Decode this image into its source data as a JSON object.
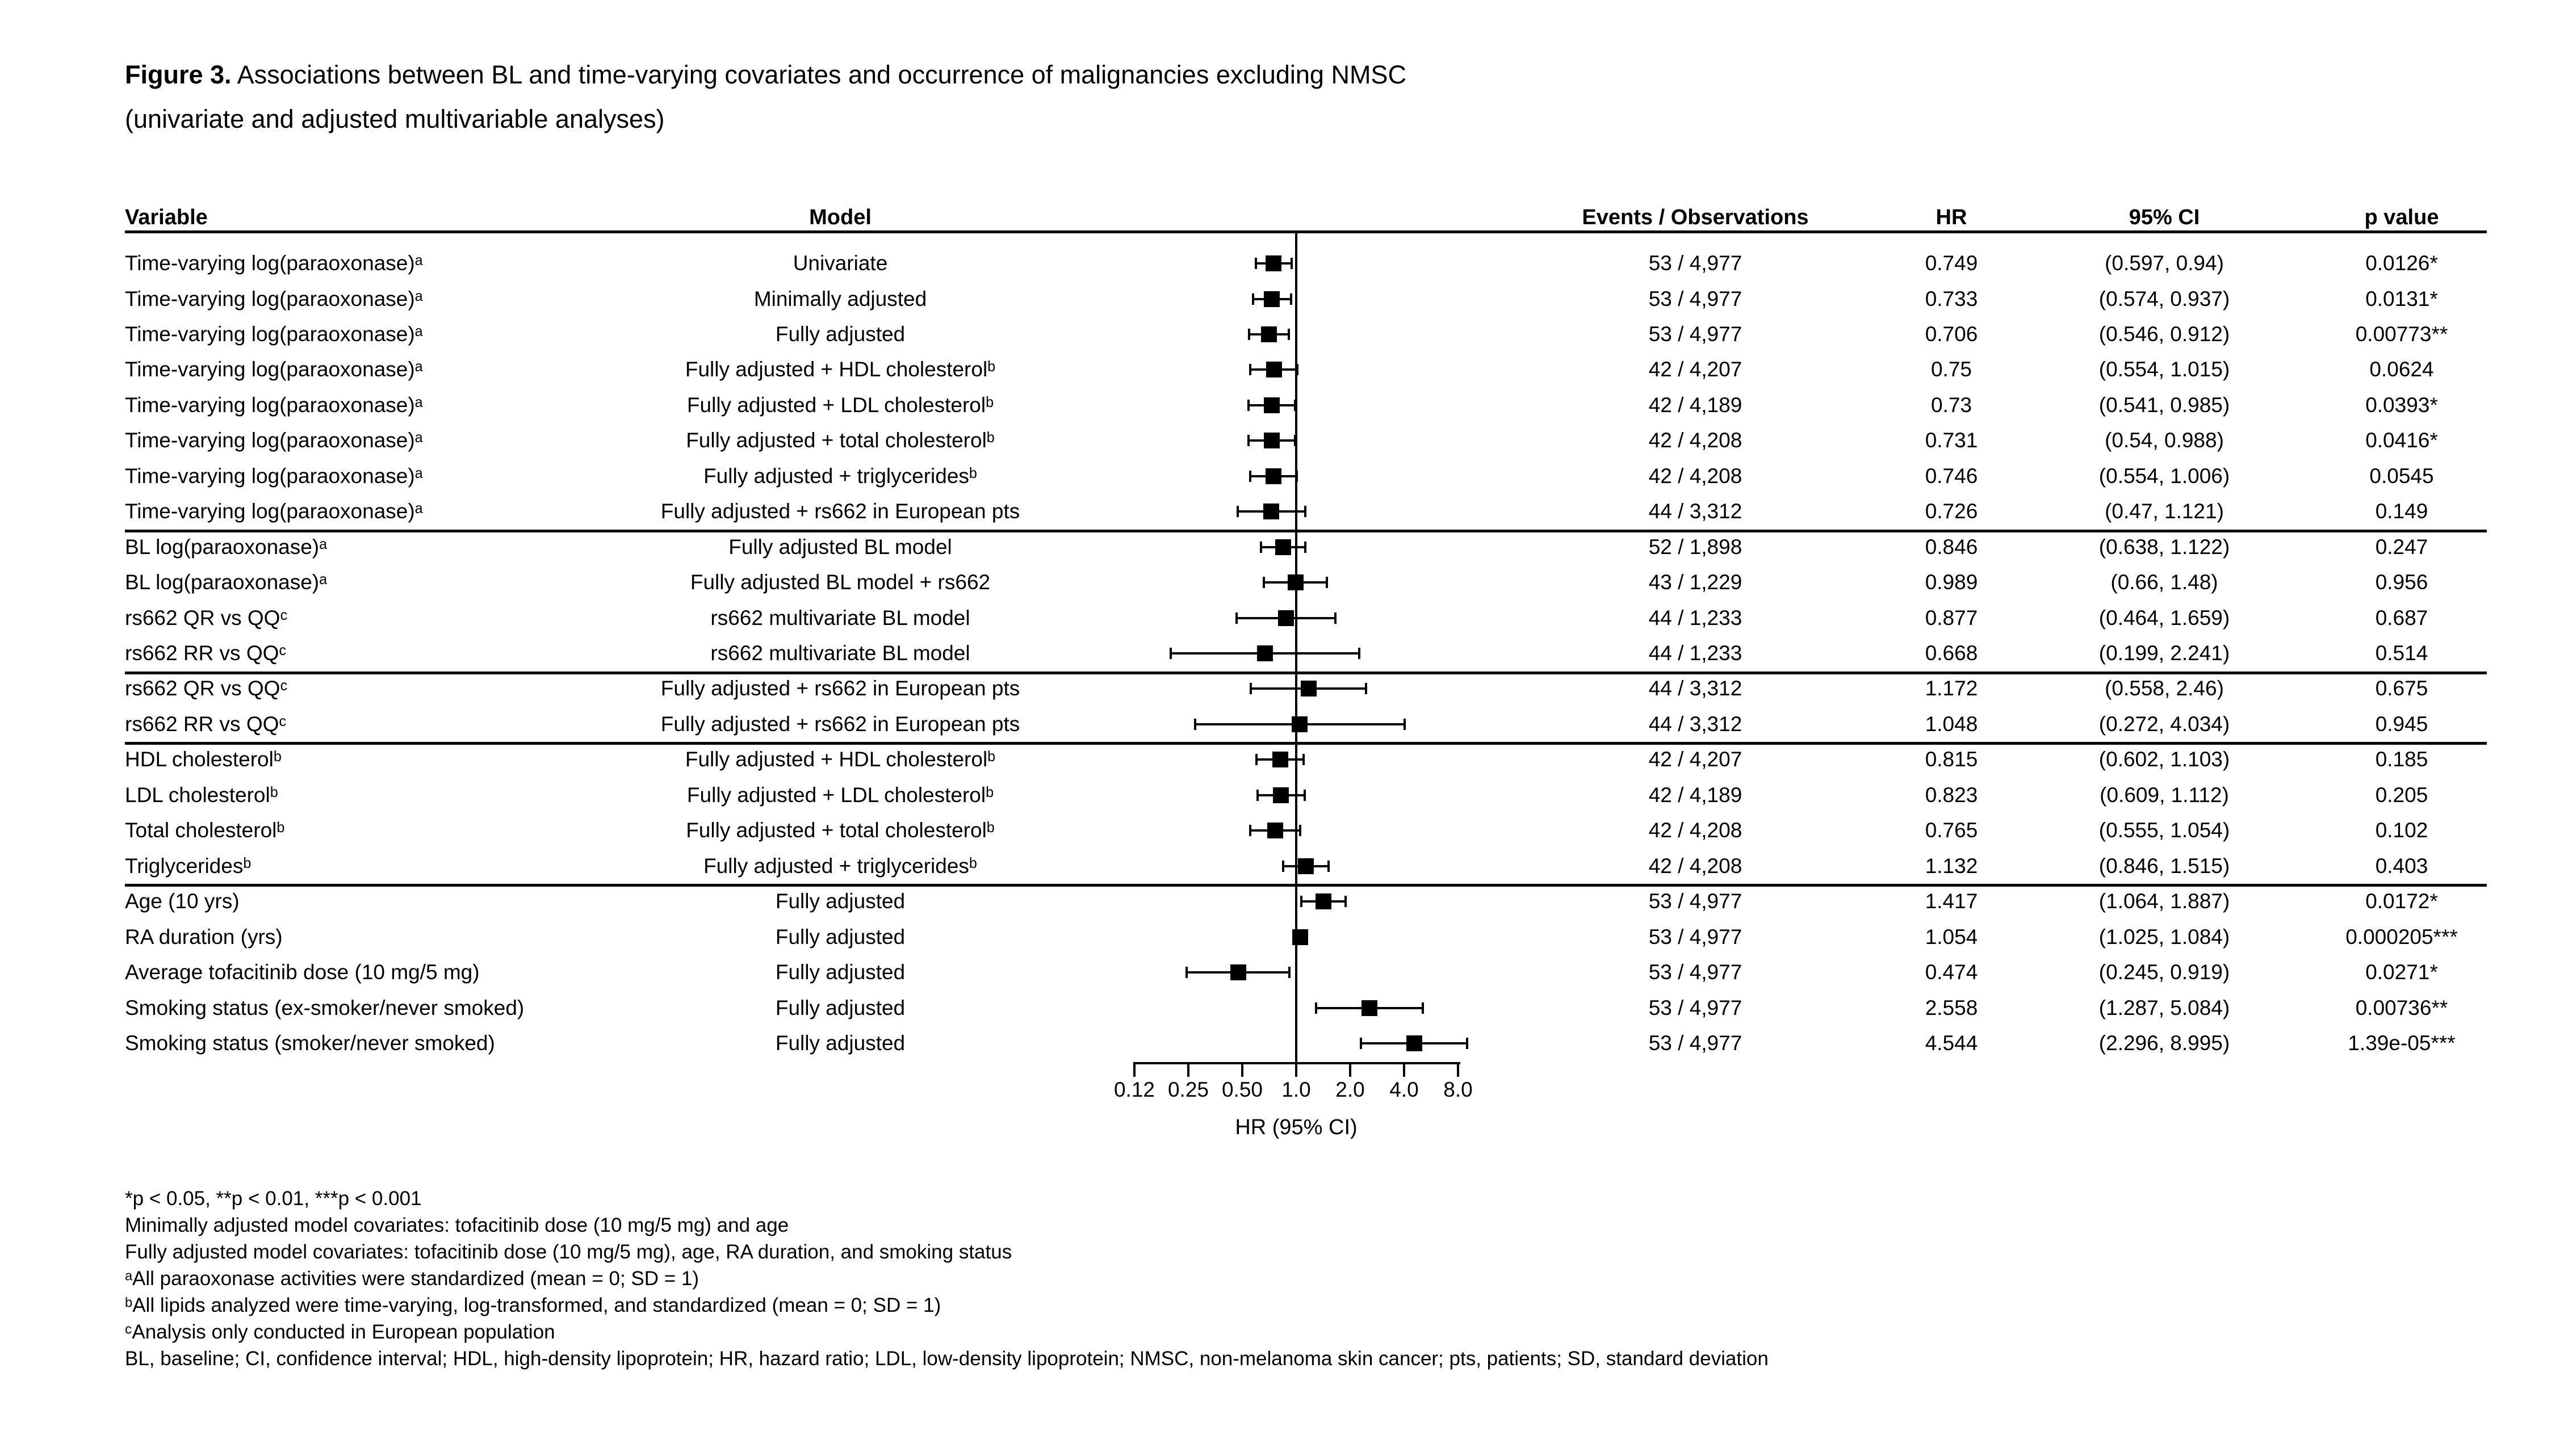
{
  "figure": {
    "label": "Figure 3.",
    "title_rest": "Associations between BL and time-varying covariates and occurrence of malignancies excluding NMSC",
    "subtitle": "(univariate and adjusted multivariable analyses)"
  },
  "columns": {
    "variable": "Variable",
    "model": "Model",
    "events": "Events / Observations",
    "hr": "HR",
    "ci": "95% CI",
    "p": "p value"
  },
  "chart_data": {
    "type": "forest",
    "title": "Figure 3. Associations between BL and time-varying covariates and occurrence of malignancies excluding NMSC (univariate and adjusted multivariable analyses)",
    "xlabel": "HR (95% CI)",
    "x_scale": "log2",
    "x_range": [
      0.125,
      8
    ],
    "reference_line": 1.0,
    "grid": false,
    "x_ticks": [
      {
        "label": "0.12",
        "value": 0.125
      },
      {
        "label": "0.25",
        "value": 0.25
      },
      {
        "label": "0.50",
        "value": 0.5
      },
      {
        "label": "1.0",
        "value": 1
      },
      {
        "label": "2.0",
        "value": 2
      },
      {
        "label": "4.0",
        "value": 4
      },
      {
        "label": "8.0",
        "value": 8
      }
    ],
    "group_separators_after_rows": [
      8,
      12,
      14,
      18
    ],
    "rows": [
      {
        "variable": "Time-varying log(paraoxonase)ᵃ",
        "model": "Univariate",
        "events": "53 / 4,977",
        "hr": "0.749",
        "ci": "(0.597, 0.94)",
        "p": "0.0126*"
      },
      {
        "variable": "Time-varying log(paraoxonase)ᵃ",
        "model": "Minimally adjusted",
        "events": "53 / 4,977",
        "hr": "0.733",
        "ci": "(0.574, 0.937)",
        "p": "0.0131*"
      },
      {
        "variable": "Time-varying log(paraoxonase)ᵃ",
        "model": "Fully adjusted",
        "events": "53 / 4,977",
        "hr": "0.706",
        "ci": "(0.546, 0.912)",
        "p": "0.00773**"
      },
      {
        "variable": "Time-varying log(paraoxonase)ᵃ",
        "model": "Fully adjusted + HDL cholesterolᵇ",
        "events": "42 / 4,207",
        "hr": "0.75",
        "ci": "(0.554, 1.015)",
        "p": "0.0624"
      },
      {
        "variable": "Time-varying log(paraoxonase)ᵃ",
        "model": "Fully adjusted + LDL cholesterolᵇ",
        "events": "42 / 4,189",
        "hr": "0.73",
        "ci": "(0.541, 0.985)",
        "p": "0.0393*"
      },
      {
        "variable": "Time-varying log(paraoxonase)ᵃ",
        "model": "Fully adjusted + total cholesterolᵇ",
        "events": "42 / 4,208",
        "hr": "0.731",
        "ci": "(0.54, 0.988)",
        "p": "0.0416*"
      },
      {
        "variable": "Time-varying log(paraoxonase)ᵃ",
        "model": "Fully adjusted + triglyceridesᵇ",
        "events": "42 / 4,208",
        "hr": "0.746",
        "ci": "(0.554, 1.006)",
        "p": "0.0545"
      },
      {
        "variable": "Time-varying log(paraoxonase)ᵃ",
        "model": "Fully adjusted + rs662 in European pts",
        "events": "44 / 3,312",
        "hr": "0.726",
        "ci": "(0.47, 1.121)",
        "p": "0.149"
      },
      {
        "variable": "BL log(paraoxonase)ᵃ",
        "model": "Fully adjusted BL model",
        "events": "52 / 1,898",
        "hr": "0.846",
        "ci": "(0.638, 1.122)",
        "p": "0.247"
      },
      {
        "variable": "BL log(paraoxonase)ᵃ",
        "model": "Fully adjusted BL model + rs662",
        "events": "43 / 1,229",
        "hr": "0.989",
        "ci": "(0.66, 1.48)",
        "p": "0.956"
      },
      {
        "variable": "rs662 QR vs QQᶜ",
        "model": "rs662 multivariate BL model",
        "events": "44 / 1,233",
        "hr": "0.877",
        "ci": "(0.464, 1.659)",
        "p": "0.687"
      },
      {
        "variable": "rs662 RR vs QQᶜ",
        "model": "rs662 multivariate BL model",
        "events": "44 / 1,233",
        "hr": "0.668",
        "ci": "(0.199, 2.241)",
        "p": "0.514"
      },
      {
        "variable": "rs662 QR vs QQᶜ",
        "model": "Fully adjusted + rs662 in European pts",
        "events": "44 / 3,312",
        "hr": "1.172",
        "ci": "(0.558, 2.46)",
        "p": "0.675"
      },
      {
        "variable": "rs662 RR vs QQᶜ",
        "model": "Fully adjusted + rs662 in European pts",
        "events": "44 / 3,312",
        "hr": "1.048",
        "ci": "(0.272, 4.034)",
        "p": "0.945"
      },
      {
        "variable": "HDL cholesterolᵇ",
        "model": "Fully adjusted + HDL cholesterolᵇ",
        "events": "42 / 4,207",
        "hr": "0.815",
        "ci": "(0.602, 1.103)",
        "p": "0.185"
      },
      {
        "variable": "LDL cholesterolᵇ",
        "model": "Fully adjusted + LDL cholesterolᵇ",
        "events": "42 / 4,189",
        "hr": "0.823",
        "ci": "(0.609, 1.112)",
        "p": "0.205"
      },
      {
        "variable": "Total cholesterolᵇ",
        "model": "Fully adjusted + total cholesterolᵇ",
        "events": "42 / 4,208",
        "hr": "0.765",
        "ci": "(0.555, 1.054)",
        "p": "0.102"
      },
      {
        "variable": "Triglyceridesᵇ",
        "model": "Fully adjusted + triglyceridesᵇ",
        "events": "42 / 4,208",
        "hr": "1.132",
        "ci": "(0.846, 1.515)",
        "p": "0.403"
      },
      {
        "variable": "Age (10 yrs)",
        "model": "Fully adjusted",
        "events": "53 / 4,977",
        "hr": "1.417",
        "ci": "(1.064, 1.887)",
        "p": "0.0172*"
      },
      {
        "variable": "RA duration (yrs)",
        "model": "Fully adjusted",
        "events": "53 / 4,977",
        "hr": "1.054",
        "ci": "(1.025, 1.084)",
        "p": "0.000205***"
      },
      {
        "variable": "Average tofacitinib dose (10 mg/5 mg)",
        "model": "Fully adjusted",
        "events": "53 / 4,977",
        "hr": "0.474",
        "ci": "(0.245, 0.919)",
        "p": "0.0271*"
      },
      {
        "variable": "Smoking status (ex-smoker/never smoked)",
        "model": "Fully adjusted",
        "events": "53 / 4,977",
        "hr": "2.558",
        "ci": "(1.287, 5.084)",
        "p": "0.00736**"
      },
      {
        "variable": "Smoking status (smoker/never smoked)",
        "model": "Fully adjusted",
        "events": "53 / 4,977",
        "hr": "4.544",
        "ci": "(2.296, 8.995)",
        "p": "1.39e-05***"
      }
    ]
  },
  "footnotes": [
    "*p < 0.05, **p < 0.01, ***p < 0.001",
    "Minimally adjusted model covariates: tofacitinib dose (10 mg/5 mg) and age",
    "Fully adjusted model covariates: tofacitinib dose (10 mg/5 mg), age, RA duration, and smoking status",
    "ᵃAll paraoxonase activities were standardized (mean = 0; SD = 1)",
    "ᵇAll lipids analyzed were time-varying, log-transformed, and standardized (mean = 0; SD = 1)",
    "ᶜAnalysis only conducted in European population",
    "BL, baseline; CI, confidence interval; HDL, high-density lipoprotein; HR, hazard ratio; LDL, low-density lipoprotein; NMSC, non-melanoma skin cancer; pts, patients; SD, standard deviation"
  ]
}
